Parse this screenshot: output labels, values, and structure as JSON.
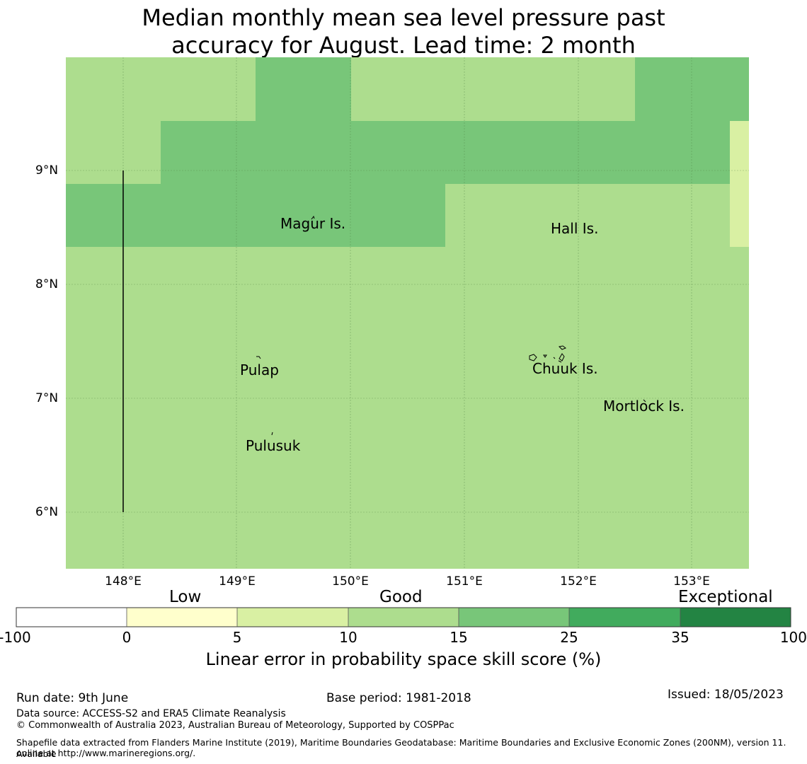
{
  "title_line1": "Median monthly mean sea level pressure past",
  "title_line2": "accuracy for August. Lead time: 2 month",
  "map": {
    "lat_ticks": [
      "9°N",
      "8°N",
      "7°N",
      "6°N"
    ],
    "lon_ticks": [
      "148°E",
      "149°E",
      "150°E",
      "151°E",
      "152°E",
      "153°E"
    ],
    "places": [
      "Magur Is.",
      "Hall Is.",
      "Pulap",
      "Chuuk Is.",
      "Mortlock Is.",
      "Pulusuk"
    ],
    "colors": {
      "band_5_10": "#d9f0a3",
      "band_10_15": "#addd8e",
      "band_15_25": "#78c679",
      "band_25_35": "#41ab5d",
      "band_35_100": "#238443",
      "band_0_5": "#ffffcc",
      "band_neg": "#ffffff"
    }
  },
  "colorbar": {
    "categories": [
      "Low",
      "Good",
      "Exceptional"
    ],
    "ticks": [
      "-100",
      "0",
      "5",
      "10",
      "15",
      "25",
      "35",
      "100"
    ],
    "label": "Linear error in probability space skill score (%)"
  },
  "footer": {
    "run_date": "Run date: 9th June",
    "base_period": "Base period: 1981-2018",
    "issued": "Issued: 18/05/2023",
    "data_source": "Data source: ACCESS-S2 and ERA5 Climate Reanalysis",
    "copyright": "© Commonwealth of Australia 2023, Australian Bureau of Meteorology, Supported by COSPPac",
    "shapefile_line1": "Shapefile data extracted from Flanders Marine Institute (2019), Maritime Boundaries Geodatabase: Maritime Boundaries and Exclusive Economic Zones (200NM), version 11. Available",
    "shapefile_line2": "online at http://www.marineregions.org/."
  }
}
